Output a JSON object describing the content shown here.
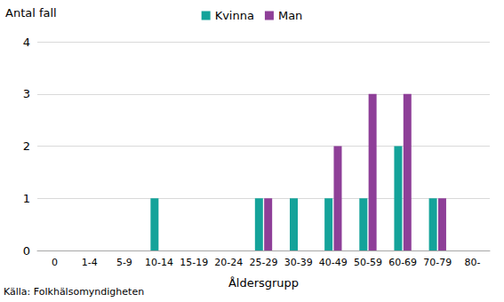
{
  "chart_data": {
    "type": "bar",
    "ylabel": "Antal fall",
    "xlabel": "Åldersgrupp",
    "annotations": [
      "Källa: Folkhälsomyndigheten"
    ],
    "categories": [
      "0",
      "1-4",
      "5-9",
      "10-14",
      "15-19",
      "20-24",
      "25-29",
      "30-39",
      "40-49",
      "50-59",
      "60-69",
      "70-79",
      "80-"
    ],
    "series": [
      {
        "name": "Kvinna",
        "color": "#14a39a",
        "values": [
          0,
          0,
          0,
          1,
          0,
          0,
          1,
          1,
          1,
          1,
          2,
          1,
          0
        ]
      },
      {
        "name": "Man",
        "color": "#8e3f98",
        "values": [
          0,
          0,
          0,
          0,
          0,
          0,
          1,
          0,
          2,
          3,
          3,
          1,
          0
        ]
      }
    ],
    "ylim": [
      0,
      4
    ],
    "yticks": [
      0,
      1,
      2,
      3,
      4
    ],
    "grid": true,
    "legend": "top"
  }
}
